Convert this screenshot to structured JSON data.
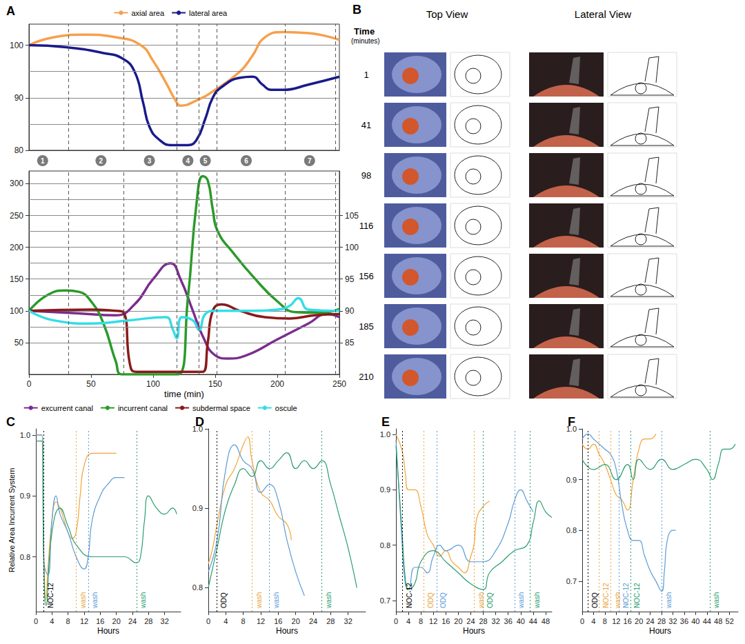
{
  "chart_data": [
    {
      "type": "line",
      "title": "A",
      "xlim": [
        0,
        250
      ],
      "ylim": [
        80,
        104
      ],
      "yticks": [
        80,
        90,
        100
      ],
      "grid": true,
      "legend": "top",
      "tick_labels": "y",
      "vlines": [
        32,
        76,
        119,
        137,
        151,
        206,
        247
      ],
      "annotations": [
        {
          "text": "1",
          "x": 11
        },
        {
          "text": "2",
          "x": 58
        },
        {
          "text": "3",
          "x": 97
        },
        {
          "text": "4",
          "x": 128
        },
        {
          "text": "5",
          "x": 142
        },
        {
          "text": "6",
          "x": 175
        },
        {
          "text": "7",
          "x": 226
        }
      ],
      "series": [
        {
          "name": "axial area",
          "color": "#f6a04d",
          "x": [
            0,
            20,
            45,
            70,
            90,
            100,
            110,
            118,
            122,
            135,
            150,
            170,
            180,
            190,
            205,
            225,
            250
          ],
          "values": [
            100,
            101.5,
            102,
            101.5,
            100,
            97,
            93,
            89.5,
            88.5,
            89.5,
            91.5,
            95,
            98,
            101.5,
            102.5,
            102.3,
            101
          ]
        },
        {
          "name": "lateral area",
          "color": "#1a1a8c",
          "x": [
            0,
            30,
            60,
            75,
            85,
            92,
            97,
            105,
            115,
            128,
            135,
            142,
            148,
            155,
            170,
            180,
            188,
            195,
            205,
            225,
            250
          ],
          "values": [
            100,
            99.6,
            98.5,
            97.5,
            95,
            89,
            84.5,
            82,
            81,
            81,
            82,
            86,
            90,
            92,
            93.8,
            94,
            92.5,
            91.5,
            91.5,
            92.5,
            94
          ]
        }
      ]
    },
    {
      "type": "line",
      "xlim": [
        0,
        250
      ],
      "xticks": [
        0,
        50,
        100,
        150,
        200,
        250
      ],
      "ylim": [
        0,
        320
      ],
      "yticks": [
        50,
        100,
        150,
        200,
        250,
        300
      ],
      "y2lim": [
        80,
        112
      ],
      "y2ticks": [
        85,
        90,
        95,
        100,
        105
      ],
      "x_label": "time (min)",
      "grid": true,
      "legend": "bottom",
      "vlines": [
        32,
        76,
        119,
        137,
        151,
        206,
        247
      ],
      "series": [
        {
          "name": "excurrent canal",
          "color": "#7b2d8e",
          "x": [
            0,
            40,
            70,
            85,
            100,
            114,
            122,
            132,
            140,
            150,
            160,
            175,
            200,
            225,
            240,
            250
          ],
          "values": [
            100,
            96,
            93,
            110,
            150,
            175,
            150,
            100,
            60,
            30,
            25,
            30,
            55,
            80,
            95,
            90
          ]
        },
        {
          "name": "incurrent canal",
          "color": "#2a9a2a",
          "x": [
            0,
            15,
            30,
            40,
            50,
            60,
            70,
            75,
            120,
            128,
            135,
            140,
            144,
            148,
            152,
            165,
            180,
            200,
            215,
            235,
            250
          ],
          "values": [
            100,
            125,
            132,
            130,
            115,
            80,
            20,
            0,
            0,
            120,
            270,
            312,
            305,
            260,
            225,
            190,
            155,
            115,
            98,
            97,
            103
          ]
        },
        {
          "name": "subdermal space",
          "color": "#8b1a1a",
          "x": [
            0,
            50,
            70,
            76,
            82,
            88,
            140,
            144,
            148,
            155,
            170,
            190,
            210,
            230,
            250
          ],
          "values": [
            100,
            102,
            100,
            98,
            10,
            4,
            4,
            50,
            100,
            110,
            100,
            90,
            88,
            93,
            95
          ]
        },
        {
          "name": "oscule",
          "color": "#33dde6",
          "axis": "y2",
          "x": [
            0,
            20,
            50,
            80,
            110,
            116,
            119,
            123,
            132,
            137,
            142,
            150,
            180,
            200,
            210,
            217,
            225,
            250
          ],
          "values": [
            90,
            88.5,
            88,
            88.5,
            89,
            87,
            85.7,
            89,
            88.5,
            87,
            89.5,
            90,
            90,
            90.2,
            90.8,
            92,
            90.2,
            90
          ]
        }
      ]
    },
    {
      "type": "line",
      "title": "C",
      "xlim": [
        0,
        36
      ],
      "xticks": [
        0,
        4,
        8,
        12,
        16,
        20,
        24,
        28,
        32
      ],
      "ylim": [
        0.71,
        1.01
      ],
      "yticks": [
        0.8,
        0.9,
        {
          "value": 1,
          "label": "1.0"
        }
      ],
      "x_label": "Hours",
      "y_label": "Relative Area Incurrent System",
      "annotations": [
        {
          "text": "NOC-12",
          "x": 2,
          "color": "#000000"
        },
        {
          "text": "wash",
          "x": 10,
          "color": "#e8a33d"
        },
        {
          "text": "wash",
          "x": 13,
          "color": "#5b9bd5"
        },
        {
          "text": "wash",
          "x": 25,
          "color": "#2a9d6f"
        }
      ],
      "series": [
        {
          "color": "#f0a43a",
          "x": [
            0,
            1.5,
            2,
            2.5,
            3,
            4,
            5,
            6,
            7,
            8,
            9,
            10,
            11,
            12,
            14,
            16,
            18,
            20
          ],
          "values": [
            1.0,
            1.0,
            0.8,
            0.73,
            0.78,
            0.86,
            0.89,
            0.88,
            0.86,
            0.84,
            0.83,
            0.84,
            0.9,
            0.95,
            0.97,
            0.97,
            0.97,
            0.97
          ]
        },
        {
          "color": "#5b9bd5",
          "x": [
            0,
            1.5,
            2,
            3,
            4,
            5,
            6,
            8,
            10,
            12,
            13,
            14,
            16,
            18,
            20,
            22
          ],
          "values": [
            1.0,
            1.0,
            0.79,
            0.77,
            0.86,
            0.9,
            0.87,
            0.84,
            0.8,
            0.78,
            0.8,
            0.86,
            0.9,
            0.92,
            0.93,
            0.93
          ]
        },
        {
          "color": "#2a9d6f",
          "x": [
            0,
            1.5,
            2,
            2.5,
            4,
            6,
            8,
            10,
            14,
            18,
            22,
            25,
            26,
            27,
            28,
            30,
            32,
            34,
            35
          ],
          "values": [
            0.99,
            0.99,
            0.78,
            0.72,
            0.84,
            0.88,
            0.85,
            0.82,
            0.8,
            0.8,
            0.8,
            0.79,
            0.8,
            0.86,
            0.9,
            0.88,
            0.87,
            0.88,
            0.87
          ]
        }
      ]
    },
    {
      "type": "line",
      "title": "D",
      "xlim": [
        0,
        36
      ],
      "xticks": [
        0,
        4,
        8,
        12,
        16,
        20,
        24,
        28,
        32
      ],
      "ylim": [
        0.77,
        1.0
      ],
      "yticks": [
        0.8,
        0.9,
        {
          "value": 1,
          "label": "1.0"
        }
      ],
      "x_label": "Hours",
      "annotations": [
        {
          "text": "ODQ",
          "x": 2,
          "color": "#000000"
        },
        {
          "text": "wash",
          "x": 10,
          "color": "#e8a33d"
        },
        {
          "text": "wash",
          "x": 14,
          "color": "#5b9bd5"
        },
        {
          "text": "wash",
          "x": 26,
          "color": "#2a9d6f"
        }
      ],
      "series": [
        {
          "color": "#f0a43a",
          "x": [
            0,
            1,
            2,
            4,
            6,
            8,
            9,
            10,
            12,
            14,
            16,
            18,
            19
          ],
          "values": [
            0.83,
            0.85,
            0.88,
            0.93,
            0.95,
            0.98,
            0.99,
            0.96,
            0.92,
            0.91,
            0.89,
            0.88,
            0.86
          ]
        },
        {
          "color": "#5b9bd5",
          "x": [
            0,
            2,
            4,
            6,
            8,
            10,
            12,
            14,
            16,
            18,
            20,
            22
          ],
          "values": [
            0.82,
            0.86,
            0.95,
            0.98,
            0.96,
            0.95,
            0.92,
            0.93,
            0.91,
            0.86,
            0.82,
            0.79
          ]
        },
        {
          "color": "#2a9d6f",
          "x": [
            0,
            2,
            4,
            6,
            8,
            10,
            12,
            14,
            16,
            18,
            20,
            22,
            24,
            26,
            28,
            30,
            32,
            34
          ],
          "values": [
            0.8,
            0.85,
            0.9,
            0.93,
            0.95,
            0.94,
            0.96,
            0.95,
            0.96,
            0.97,
            0.95,
            0.96,
            0.95,
            0.96,
            0.93,
            0.89,
            0.85,
            0.8
          ]
        }
      ]
    },
    {
      "type": "line",
      "title": "E",
      "xlim": [
        0,
        50
      ],
      "xticks": [
        0,
        4,
        8,
        12,
        16,
        20,
        24,
        28,
        32,
        36,
        40,
        44,
        48
      ],
      "ylim": [
        0.68,
        1.01
      ],
      "yticks": [
        0.7,
        0.8,
        0.9,
        {
          "value": 1,
          "label": "1.0"
        }
      ],
      "x_label": "Hours",
      "annotations": [
        {
          "text": "NOC-12",
          "x": 2,
          "color": "#000000"
        },
        {
          "text": "ODQ",
          "x": 9,
          "color": "#e8a33d"
        },
        {
          "text": "ODQ",
          "x": 13,
          "color": "#5b9bd5"
        },
        {
          "text": "wash",
          "x": 25,
          "color": "#e8a33d"
        },
        {
          "text": "ODQ",
          "x": 28,
          "color": "#2a9d6f"
        },
        {
          "text": "wash",
          "x": 38,
          "color": "#5b9bd5"
        },
        {
          "text": "wash",
          "x": 43,
          "color": "#2a9d6f"
        }
      ],
      "series": [
        {
          "color": "#f0a43a",
          "x": [
            0,
            2,
            3,
            4,
            6,
            8,
            10,
            12,
            14,
            16,
            18,
            20,
            22,
            24,
            25,
            26,
            28,
            30
          ],
          "values": [
            1.0,
            0.97,
            0.93,
            0.9,
            0.9,
            0.87,
            0.82,
            0.8,
            0.78,
            0.79,
            0.77,
            0.76,
            0.75,
            0.78,
            0.8,
            0.85,
            0.87,
            0.88
          ]
        },
        {
          "color": "#5b9bd5",
          "x": [
            0,
            2,
            3,
            4,
            6,
            8,
            10,
            12,
            14,
            16,
            20,
            24,
            28,
            32,
            36,
            38,
            40,
            42,
            44
          ],
          "values": [
            0.99,
            0.8,
            0.73,
            0.72,
            0.76,
            0.76,
            0.75,
            0.78,
            0.8,
            0.79,
            0.8,
            0.77,
            0.77,
            0.79,
            0.84,
            0.88,
            0.9,
            0.88,
            0.86
          ]
        },
        {
          "color": "#2a9d6f",
          "x": [
            0,
            2,
            3,
            4,
            6,
            8,
            12,
            16,
            20,
            24,
            28,
            30,
            34,
            38,
            42,
            44,
            46,
            48,
            50
          ],
          "values": [
            0.98,
            0.82,
            0.74,
            0.72,
            0.73,
            0.77,
            0.79,
            0.77,
            0.75,
            0.73,
            0.72,
            0.75,
            0.77,
            0.79,
            0.8,
            0.84,
            0.88,
            0.86,
            0.85
          ]
        }
      ]
    },
    {
      "type": "line",
      "title": "F",
      "xlim": [
        0,
        55
      ],
      "xticks": [
        0,
        4,
        8,
        12,
        16,
        20,
        24,
        28,
        32,
        36,
        40,
        44,
        48,
        52
      ],
      "ylim": [
        0.64,
        1.0
      ],
      "yticks": [
        0.7,
        0.8,
        0.9,
        {
          "value": 1,
          "label": "1.0"
        }
      ],
      "x_label": "Hours",
      "annotations": [
        {
          "text": "ODQ",
          "x": 2,
          "color": "#000000"
        },
        {
          "text": "NOC-12",
          "x": 6,
          "color": "#e8a33d"
        },
        {
          "text": "wash",
          "x": 10,
          "color": "#e8a33d"
        },
        {
          "text": "NOC-12",
          "x": 13,
          "color": "#5b9bd5"
        },
        {
          "text": "NOC-12",
          "x": 17,
          "color": "#2a9d6f"
        },
        {
          "text": "wash",
          "x": 28,
          "color": "#5b9bd5"
        },
        {
          "text": "wash",
          "x": 45,
          "color": "#2a9d6f"
        }
      ],
      "series": [
        {
          "color": "#f0a43a",
          "x": [
            0,
            2,
            4,
            6,
            8,
            10,
            12,
            14,
            16,
            18,
            20,
            22,
            24,
            26
          ],
          "values": [
            0.97,
            0.96,
            0.97,
            0.95,
            0.93,
            0.9,
            0.87,
            0.86,
            0.84,
            0.9,
            0.96,
            0.98,
            0.98,
            0.99
          ]
        },
        {
          "color": "#5b9bd5",
          "x": [
            0,
            2,
            4,
            6,
            8,
            10,
            12,
            14,
            16,
            18,
            20,
            22,
            24,
            26,
            28,
            29,
            30,
            32,
            33
          ],
          "values": [
            0.98,
            0.99,
            0.98,
            0.97,
            0.96,
            0.95,
            0.92,
            0.85,
            0.8,
            0.78,
            0.78,
            0.75,
            0.72,
            0.7,
            0.68,
            0.72,
            0.78,
            0.8,
            0.8
          ]
        },
        {
          "color": "#2a9d6f",
          "x": [
            0,
            4,
            8,
            12,
            16,
            18,
            20,
            24,
            28,
            32,
            36,
            40,
            44,
            46,
            48,
            50,
            52,
            54
          ],
          "values": [
            0.94,
            0.92,
            0.93,
            0.9,
            0.93,
            0.9,
            0.94,
            0.92,
            0.94,
            0.92,
            0.93,
            0.94,
            0.92,
            0.9,
            0.93,
            0.96,
            0.96,
            0.97
          ]
        }
      ]
    }
  ],
  "panel_b": {
    "title": "B",
    "time_header": "Time",
    "time_unit": "(minutes)",
    "columns": [
      "Top View",
      "Lateral View"
    ],
    "times": [
      1,
      41,
      98,
      116,
      156,
      185,
      210
    ]
  }
}
